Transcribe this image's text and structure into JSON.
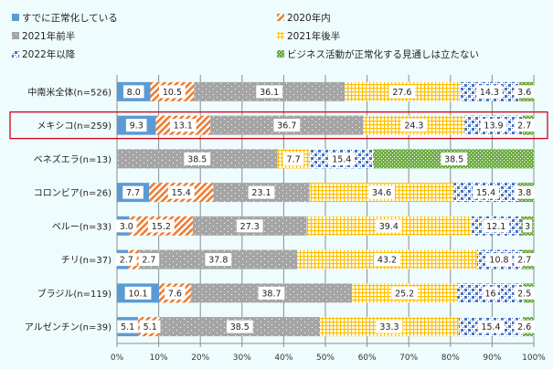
{
  "chart_data": {
    "type": "bar",
    "orientation": "horizontal",
    "stacked": "percent",
    "title": "",
    "xlabel": "",
    "ylabel": "",
    "xlim": [
      0,
      100
    ],
    "x_ticks": [
      "0%",
      "10%",
      "20%",
      "30%",
      "40%",
      "50%",
      "60%",
      "70%",
      "80%",
      "90%",
      "100%"
    ],
    "grid": true,
    "legend_position": "top",
    "categories": [
      "中南米全体(n=526)",
      "メキシコ(n=259)",
      "ベネズエラ(n=13)",
      "コロンビア(n=26)",
      "ペルー(n=33)",
      "チリ(n=37)",
      "ブラジル(n=119)",
      "アルゼンチン(n=39)"
    ],
    "highlighted_category": "メキシコ(n=259)",
    "series": [
      {
        "name": "すでに正常化している",
        "color": "#5b9bd5",
        "pattern": "solid",
        "values": [
          8.0,
          9.3,
          0,
          7.7,
          3.0,
          2.7,
          10.1,
          5.1
        ],
        "labels": [
          "8.0",
          "9.3",
          "",
          "7.7",
          "3.0",
          "2.7",
          "10.1",
          "5.1"
        ]
      },
      {
        "name": "2020年内",
        "color": "#ed7d31",
        "pattern": "diagonal",
        "values": [
          10.5,
          13.1,
          0,
          15.4,
          15.2,
          2.7,
          7.6,
          5.1
        ],
        "labels": [
          "10.5",
          "13.1",
          "",
          "15.4",
          "15.2",
          "2.7",
          "7.6",
          "5.1"
        ]
      },
      {
        "name": "2021年前半",
        "color": "#a5a5a5",
        "pattern": "dots",
        "values": [
          36.1,
          36.7,
          38.5,
          23.1,
          27.3,
          37.8,
          38.7,
          38.5
        ],
        "labels": [
          "36.1",
          "36.7",
          "38.5",
          "23.1",
          "27.3",
          "37.8",
          "38.7",
          "38.5"
        ]
      },
      {
        "name": "2021年後半",
        "color": "#ffc000",
        "pattern": "grid",
        "values": [
          27.6,
          24.3,
          7.7,
          34.6,
          39.4,
          43.2,
          25.2,
          33.3
        ],
        "labels": [
          "27.6",
          "24.3",
          "7.7",
          "34.6",
          "39.4",
          "43.2",
          "25.2",
          "33.3"
        ]
      },
      {
        "name": "2022年以降",
        "color": "#4472c4",
        "pattern": "checker",
        "values": [
          14.3,
          13.9,
          15.4,
          15.4,
          12.1,
          10.8,
          16,
          15.4
        ],
        "labels": [
          "14.3",
          "13.9",
          "15.4",
          "15.4",
          "12.1",
          "10.8",
          "16",
          "15.4"
        ]
      },
      {
        "name": "ビジネス活動が正常化する見通しは立たない",
        "color": "#70ad47",
        "pattern": "weave",
        "values": [
          3.6,
          2.7,
          38.5,
          3.8,
          3,
          2.7,
          2.5,
          2.6
        ],
        "labels": [
          "3.6",
          "2.7",
          "38.5",
          "3.8",
          "3",
          "2.7",
          "2.5",
          "2.6"
        ]
      }
    ]
  }
}
